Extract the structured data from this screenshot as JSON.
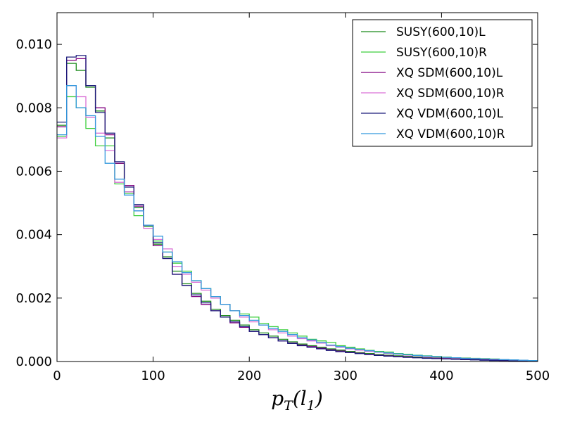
{
  "chart_data": {
    "type": "line",
    "step": true,
    "xlabel": "p_T(l_1)",
    "xlim": [
      0,
      500
    ],
    "ylim": [
      0,
      0.011
    ],
    "bin_width": 10,
    "xticks": [
      0,
      100,
      200,
      300,
      400,
      500
    ],
    "yticks": [
      0.0,
      0.002,
      0.004,
      0.006,
      0.008,
      0.01
    ],
    "ytick_labels": [
      "0.000",
      "0.002",
      "0.004",
      "0.006",
      "0.008",
      "0.010"
    ],
    "grid": false,
    "legend_position": "top-right",
    "series": [
      {
        "name": "SUSY(600,10)L",
        "color": "#1a8a1a",
        "values": [
          0.00745,
          0.0094,
          0.00918,
          0.00865,
          0.0079,
          0.00705,
          0.00625,
          0.00535,
          0.00485,
          0.00425,
          0.0037,
          0.0033,
          0.00285,
          0.00245,
          0.00215,
          0.0019,
          0.00165,
          0.00145,
          0.0013,
          0.00115,
          0.001,
          0.0009,
          0.0008,
          0.0007,
          0.00062,
          0.00055,
          0.0005,
          0.00045,
          0.0004,
          0.00036,
          0.00032,
          0.00028,
          0.00025,
          0.00022,
          0.0002,
          0.00018,
          0.00016,
          0.00014,
          0.00012,
          0.00011,
          0.0001,
          9e-05,
          8e-05,
          7e-05,
          6e-05,
          5e-05,
          4e-05,
          3e-05,
          2e-05,
          1e-05
        ]
      },
      {
        "name": "SUSY(600,10)R",
        "color": "#3ecf3e",
        "values": [
          0.0071,
          0.00835,
          0.008,
          0.00735,
          0.0068,
          0.0068,
          0.0056,
          0.0053,
          0.0046,
          0.0043,
          0.0038,
          0.00345,
          0.0031,
          0.00285,
          0.00255,
          0.0023,
          0.00205,
          0.0018,
          0.0016,
          0.0015,
          0.0014,
          0.0012,
          0.0011,
          0.001,
          0.0009,
          0.0008,
          0.0007,
          0.00065,
          0.0006,
          0.0005,
          0.00045,
          0.0004,
          0.00035,
          0.00032,
          0.0003,
          0.00025,
          0.00023,
          0.0002,
          0.00018,
          0.00016,
          0.00014,
          0.00012,
          0.00011,
          0.0001,
          9e-05,
          8e-05,
          6e-05,
          5e-05,
          4e-05,
          3e-05
        ]
      },
      {
        "name": "XQ SDM(600,10)L",
        "color": "#800080",
        "values": [
          0.0074,
          0.0095,
          0.00955,
          0.0087,
          0.008,
          0.00715,
          0.00625,
          0.00555,
          0.0049,
          0.0043,
          0.00365,
          0.00325,
          0.00275,
          0.0024,
          0.00205,
          0.0018,
          0.0016,
          0.0014,
          0.00122,
          0.00108,
          0.00095,
          0.00085,
          0.00075,
          0.00065,
          0.00058,
          0.00052,
          0.00047,
          0.00042,
          0.00037,
          0.00033,
          0.00029,
          0.00026,
          0.00023,
          0.0002,
          0.00018,
          0.00016,
          0.00014,
          0.00012,
          0.00011,
          0.0001,
          9e-05,
          8e-05,
          7e-05,
          6e-05,
          5e-05,
          4e-05,
          3e-05,
          2e-05,
          2e-05,
          1e-05
        ]
      },
      {
        "name": "XQ SDM(600,10)R",
        "color": "#da70d6",
        "values": [
          0.00705,
          0.0087,
          0.00835,
          0.0077,
          0.0072,
          0.00665,
          0.00565,
          0.00535,
          0.00475,
          0.0042,
          0.00385,
          0.00355,
          0.003,
          0.00275,
          0.0025,
          0.00225,
          0.002,
          0.0018,
          0.0016,
          0.0014,
          0.00125,
          0.00115,
          0.001,
          0.0009,
          0.0008,
          0.00072,
          0.00065,
          0.00058,
          0.0005,
          0.00045,
          0.0004,
          0.00036,
          0.00032,
          0.00029,
          0.00026,
          0.00023,
          0.0002,
          0.00018,
          0.00016,
          0.00014,
          0.00012,
          0.00011,
          0.0001,
          9e-05,
          8e-05,
          7e-05,
          6e-05,
          5e-05,
          4e-05,
          3e-05
        ]
      },
      {
        "name": "XQ VDM(600,10)L",
        "color": "#1a1a7a",
        "values": [
          0.00755,
          0.0096,
          0.00965,
          0.0087,
          0.00785,
          0.0072,
          0.0063,
          0.0055,
          0.00495,
          0.0043,
          0.00375,
          0.00325,
          0.00275,
          0.0024,
          0.0021,
          0.00185,
          0.0016,
          0.0014,
          0.00125,
          0.0011,
          0.00095,
          0.00085,
          0.00075,
          0.00065,
          0.00057,
          0.0005,
          0.00045,
          0.0004,
          0.00035,
          0.00031,
          0.00028,
          0.00025,
          0.00022,
          0.00019,
          0.00017,
          0.00015,
          0.00013,
          0.00012,
          0.0001,
          9e-05,
          8e-05,
          7e-05,
          6e-05,
          5e-05,
          4e-05,
          3e-05,
          3e-05,
          2e-05,
          1e-05,
          1e-05
        ]
      },
      {
        "name": "XQ VDM(600,10)R",
        "color": "#3399dd",
        "values": [
          0.00715,
          0.0087,
          0.008,
          0.00775,
          0.0071,
          0.00625,
          0.00575,
          0.00525,
          0.00475,
          0.0043,
          0.00395,
          0.00345,
          0.00315,
          0.0028,
          0.00255,
          0.0023,
          0.00205,
          0.0018,
          0.0016,
          0.00145,
          0.0013,
          0.00115,
          0.00105,
          0.00095,
          0.00085,
          0.00075,
          0.00068,
          0.0006,
          0.00052,
          0.00047,
          0.00042,
          0.00038,
          0.00034,
          0.0003,
          0.00027,
          0.00024,
          0.00021,
          0.00019,
          0.00017,
          0.00015,
          0.00013,
          0.00012,
          0.0001,
          9e-05,
          8e-05,
          7e-05,
          6e-05,
          5e-05,
          4e-05,
          3e-05
        ]
      }
    ]
  }
}
